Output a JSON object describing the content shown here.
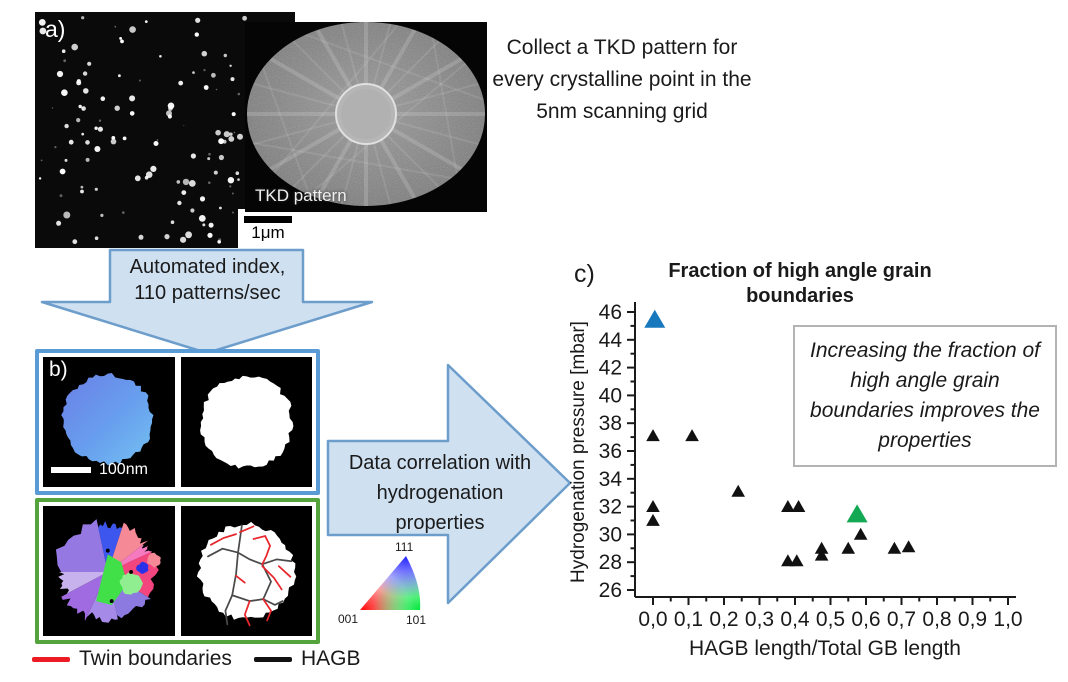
{
  "colors": {
    "arrow_fill": "#cfe0f1",
    "arrow_border": "#6d9dcb",
    "panel_b_border": "#5b9bd5",
    "panel_b2_border": "#55a33c",
    "twin_red": "#ed1c24",
    "hagb_black": "#111111",
    "marker_black": "#111111",
    "marker_blue": "#1878be",
    "marker_green": "#12a854"
  },
  "panel_a": {
    "label": "a)",
    "scale_bar": "1μm",
    "tkd_label": "TKD pattern"
  },
  "collect_text": "Collect a TKD pattern for every crystalline point in the 5nm scanning grid",
  "down_arrow": {
    "line1": "Automated index,",
    "line2": "110 patterns/sec"
  },
  "panel_b": {
    "label": "b)",
    "scale_bar": "100nm",
    "grain_colors": [
      "#f4467e",
      "#8d7ae0",
      "#a58ae8",
      "#f58a96",
      "#3d56ee",
      "#9678e2",
      "#a06ae0",
      "#c8b2ee",
      "#f57ac0",
      "#42e048",
      "#90ee90",
      "#2a30e8"
    ]
  },
  "right_arrow": {
    "line1": "Data correlation with",
    "line2": "hydrogenation",
    "line3": "properties"
  },
  "ipf_triangle": {
    "corner_bottom_left": "001",
    "corner_bottom_right": "101",
    "corner_top": "111"
  },
  "legend": {
    "twin": {
      "label": "Twin boundaries",
      "color": "#ed1c24"
    },
    "hagb": {
      "label": "HAGB",
      "color": "#111111"
    }
  },
  "chart_data": {
    "type": "scatter",
    "panel_label": "c)",
    "title": "Fraction of high angle grain boundaries",
    "xlabel": "HAGB length/Total GB length",
    "ylabel": "Hydrogenation pressure [mbar]",
    "xlim": [
      0.0,
      1.0
    ],
    "ylim": [
      26,
      46
    ],
    "x_ticks": [
      "0,0",
      "0,1",
      "0,2",
      "0,3",
      "0,4",
      "0,5",
      "0,6",
      "0,7",
      "0,8",
      "0,9",
      "1,0"
    ],
    "y_ticks": [
      26,
      28,
      30,
      32,
      34,
      36,
      38,
      40,
      42,
      44,
      46
    ],
    "grid": false,
    "series": [
      {
        "name": "samples",
        "marker": "triangle",
        "size": "small",
        "color": "#111111",
        "points": [
          [
            0.0,
            37.0
          ],
          [
            0.11,
            37.0
          ],
          [
            0.0,
            31.9
          ],
          [
            0.0,
            30.9
          ],
          [
            0.24,
            33.0
          ],
          [
            0.38,
            31.9
          ],
          [
            0.41,
            31.9
          ],
          [
            0.38,
            28.0
          ],
          [
            0.405,
            28.0
          ],
          [
            0.475,
            28.9
          ],
          [
            0.475,
            28.4
          ],
          [
            0.55,
            28.9
          ],
          [
            0.585,
            29.9
          ],
          [
            0.68,
            28.9
          ],
          [
            0.72,
            29.0
          ]
        ]
      },
      {
        "name": "highlight-blue",
        "marker": "triangle",
        "size": "large",
        "color": "#1878be",
        "points": [
          [
            0.005,
            45.3
          ]
        ]
      },
      {
        "name": "highlight-green",
        "marker": "triangle",
        "size": "large",
        "color": "#12a854",
        "points": [
          [
            0.575,
            31.3
          ]
        ]
      }
    ],
    "annotation": "Increasing the fraction of high angle grain boundaries improves the properties"
  }
}
